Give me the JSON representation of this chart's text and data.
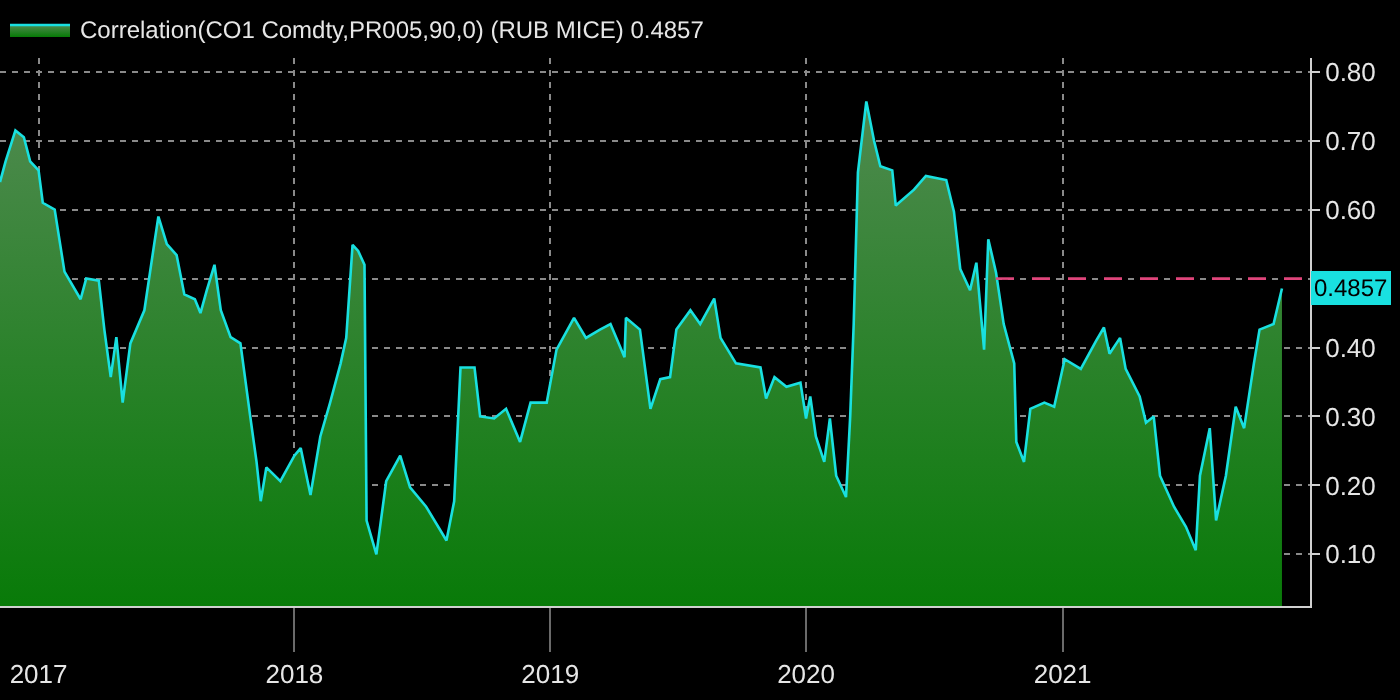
{
  "chart_data": {
    "type": "area",
    "legend": "top left",
    "grid": true,
    "marker": "none",
    "xlim": [
      "2016-11-07",
      "2021-12-20"
    ],
    "xticks": [
      {
        "value": "2017-01-01",
        "label": "2017"
      },
      {
        "value": "2018-01-01",
        "label": "2018"
      },
      {
        "value": "2019-01-01",
        "label": "2019"
      },
      {
        "value": "2020-01-01",
        "label": "2020"
      },
      {
        "value": "2021-01-01",
        "label": "2021"
      }
    ],
    "ylim": [
      0.025,
      0.82
    ],
    "yticks": [
      {
        "value": 0.1,
        "label": "0.10"
      },
      {
        "value": 0.2,
        "label": "0.20"
      },
      {
        "value": 0.3,
        "label": "0.30"
      },
      {
        "value": 0.4,
        "label": "0.40"
      },
      {
        "value": 0.5,
        "label": null
      },
      {
        "value": 0.6,
        "label": "0.60"
      },
      {
        "value": 0.7,
        "label": "0.70"
      },
      {
        "value": 0.8,
        "label": "0.80"
      }
    ],
    "annotations": [
      {
        "text": "0.4857",
        "x": "2021-11-10",
        "y": 0.4857
      }
    ],
    "series": [
      {
        "name": "Correlation(CO1 Comdty,PR005,90,0) (RUB MICE) 0.4857",
        "color": "#19e0e0",
        "line_style": "solid",
        "x": [
          "2016-11-07",
          "2016-11-15",
          "2016-11-29",
          "2016-12-11",
          "2016-12-20",
          "2017-01-01",
          "2017-01-07",
          "2017-01-24",
          "2017-02-07",
          "2017-03-02",
          "2017-03-10",
          "2017-03-28",
          "2017-04-05",
          "2017-04-14",
          "2017-04-22",
          "2017-05-01",
          "2017-05-12",
          "2017-06-01",
          "2017-06-15",
          "2017-06-21",
          "2017-07-03",
          "2017-07-17",
          "2017-07-28",
          "2017-08-12",
          "2017-08-20",
          "2017-08-29",
          "2017-09-09",
          "2017-09-18",
          "2017-10-02",
          "2017-10-16",
          "2017-10-30",
          "2017-11-08",
          "2017-11-14",
          "2017-11-22",
          "2017-12-12",
          "2018-01-01",
          "2018-01-10",
          "2018-01-24",
          "2018-02-07",
          "2018-02-21",
          "2018-03-08",
          "2018-03-16",
          "2018-03-25",
          "2018-04-02",
          "2018-04-11",
          "2018-04-14",
          "2018-04-28",
          "2018-05-12",
          "2018-06-01",
          "2018-06-15",
          "2018-07-08",
          "2018-08-06",
          "2018-08-17",
          "2018-08-26",
          "2018-09-15",
          "2018-09-23",
          "2018-10-13",
          "2018-10-30",
          "2018-11-19",
          "2018-12-04",
          "2018-12-27",
          "2019-01-10",
          "2019-02-04",
          "2019-02-21",
          "2019-03-13",
          "2019-03-28",
          "2019-04-17",
          "2019-04-19",
          "2019-05-09",
          "2019-05-24",
          "2019-06-07",
          "2019-06-21",
          "2019-06-30",
          "2019-07-20",
          "2019-08-03",
          "2019-08-23",
          "2019-09-01",
          "2019-09-23",
          "2019-10-28",
          "2019-11-05",
          "2019-11-17",
          "2019-12-04",
          "2019-12-24",
          "2020-01-01",
          "2020-01-07",
          "2020-01-15",
          "2020-01-27",
          "2020-02-04",
          "2020-02-13",
          "2020-02-27",
          "2020-03-04",
          "2020-03-09",
          "2020-03-15",
          "2020-03-27",
          "2020-04-07",
          "2020-04-16",
          "2020-05-03",
          "2020-05-08",
          "2020-06-03",
          "2020-06-20",
          "2020-07-19",
          "2020-07-30",
          "2020-08-08",
          "2020-08-22",
          "2020-08-31",
          "2020-09-11",
          "2020-09-17",
          "2020-09-28",
          "2020-10-09",
          "2020-10-24",
          "2020-10-27",
          "2020-11-07",
          "2020-11-16",
          "2020-12-06",
          "2020-12-20",
          "2021-01-04",
          "2021-01-27",
          "2021-02-18",
          "2021-03-01",
          "2021-03-09",
          "2021-03-24",
          "2021-04-01",
          "2021-04-21",
          "2021-04-30",
          "2021-05-11",
          "2021-05-20",
          "2021-06-09",
          "2021-06-26",
          "2021-07-10",
          "2021-07-16",
          "2021-07-30",
          "2021-08-08",
          "2021-08-22",
          "2021-09-05",
          "2021-09-17",
          "2021-10-01",
          "2021-10-09",
          "2021-10-29",
          "2021-11-10"
        ],
        "values": [
          0.64,
          0.67,
          0.715,
          0.705,
          0.67,
          0.657,
          0.61,
          0.6,
          0.51,
          0.47,
          0.5,
          0.497,
          0.425,
          0.357,
          0.415,
          0.32,
          0.406,
          0.454,
          0.55,
          0.59,
          0.55,
          0.534,
          0.477,
          0.47,
          0.45,
          0.483,
          0.52,
          0.454,
          0.415,
          0.406,
          0.3,
          0.234,
          0.177,
          0.226,
          0.206,
          0.243,
          0.254,
          0.186,
          0.271,
          0.32,
          0.377,
          0.414,
          0.549,
          0.54,
          0.52,
          0.149,
          0.1,
          0.206,
          0.243,
          0.197,
          0.169,
          0.12,
          0.177,
          0.371,
          0.371,
          0.3,
          0.297,
          0.311,
          0.263,
          0.32,
          0.32,
          0.397,
          0.443,
          0.414,
          0.426,
          0.434,
          0.386,
          0.443,
          0.426,
          0.311,
          0.354,
          0.357,
          0.426,
          0.454,
          0.434,
          0.471,
          0.414,
          0.377,
          0.371,
          0.326,
          0.357,
          0.343,
          0.349,
          0.297,
          0.329,
          0.271,
          0.234,
          0.297,
          0.214,
          0.183,
          0.3,
          0.434,
          0.654,
          0.757,
          0.7,
          0.663,
          0.657,
          0.606,
          0.629,
          0.649,
          0.643,
          0.597,
          0.514,
          0.483,
          0.523,
          0.397,
          0.557,
          0.509,
          0.434,
          0.377,
          0.263,
          0.234,
          0.311,
          0.32,
          0.314,
          0.383,
          0.369,
          0.41,
          0.429,
          0.391,
          0.414,
          0.369,
          0.329,
          0.291,
          0.3,
          0.214,
          0.169,
          0.14,
          0.106,
          0.214,
          0.283,
          0.149,
          0.214,
          0.314,
          0.283,
          0.377,
          0.426,
          0.434,
          0.4857
        ]
      },
      {
        "type": "line",
        "color": "#e0457b",
        "line_style": "dashed",
        "x": [
          "2020-09-28",
          "2021-12-20"
        ],
        "values": [
          0.5,
          0.5
        ]
      }
    ]
  }
}
